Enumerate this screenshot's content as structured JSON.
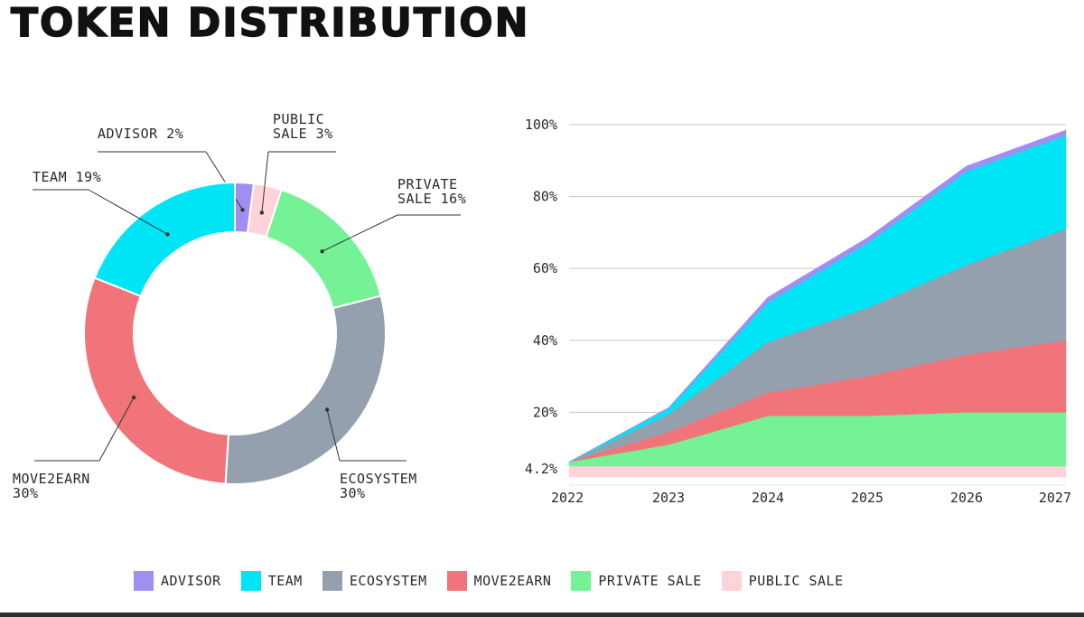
{
  "title": "TOKEN DISTRIBUTION",
  "colors": {
    "advisor": "#a08ff0",
    "team": "#00e5f5",
    "ecosystem": "#94a0ae",
    "move2earn": "#f07479",
    "private_sale": "#75f296",
    "public_sale": "#ffd3d8"
  },
  "chart_data": [
    {
      "type": "pie",
      "subtype": "donut",
      "slices": [
        {
          "key": "advisor",
          "line1": "ADVISOR 2%",
          "line2": "",
          "value": 2
        },
        {
          "key": "public_sale",
          "line1": "PUBLIC",
          "line2": "SALE 3%",
          "value": 3
        },
        {
          "key": "private_sale",
          "line1": "PRIVATE",
          "line2": "SALE 16%",
          "value": 16
        },
        {
          "key": "ecosystem",
          "line1": "ECOSYSTEM",
          "line2": "30%",
          "value": 30
        },
        {
          "key": "move2earn",
          "line1": "MOVE2EARN",
          "line2": "30%",
          "value": 30
        },
        {
          "key": "team",
          "line1": "TEAM 19%",
          "line2": "",
          "value": 19
        }
      ]
    },
    {
      "type": "area",
      "stacked": true,
      "x": [
        2022,
        2023,
        2024,
        2025,
        2026,
        2027
      ],
      "x_tick_labels": [
        "2022",
        "2023",
        "2024",
        "2025",
        "2026",
        "2027"
      ],
      "y_tick_labels": [
        "4.2%",
        "20%",
        "40%",
        "60%",
        "80%",
        "100%"
      ],
      "y_ticks": [
        4.2,
        20,
        40,
        60,
        80,
        100
      ],
      "ylim": [
        2,
        100
      ],
      "series": [
        {
          "key": "public_sale",
          "name": "PUBLIC SALE",
          "values": [
            3,
            3,
            3,
            3,
            3,
            3
          ]
        },
        {
          "key": "private_sale",
          "name": "PRIVATE SALE",
          "values": [
            1.2,
            6,
            14,
            14,
            15,
            15
          ]
        },
        {
          "key": "move2earn",
          "name": "MOVE2EARN",
          "values": [
            0,
            3.5,
            6.5,
            11,
            16,
            20
          ]
        },
        {
          "key": "ecosystem",
          "name": "ECOSYSTEM",
          "values": [
            0,
            5,
            14,
            19,
            25,
            31
          ]
        },
        {
          "key": "team",
          "name": "TEAM",
          "values": [
            0,
            1.5,
            11,
            18,
            26,
            26
          ]
        },
        {
          "key": "advisor",
          "name": "ADVISOR",
          "values": [
            0,
            0.3,
            1.5,
            1.5,
            1.5,
            1.5
          ]
        }
      ]
    }
  ],
  "legend": [
    {
      "key": "advisor",
      "label": "ADVISOR"
    },
    {
      "key": "team",
      "label": "TEAM"
    },
    {
      "key": "ecosystem",
      "label": "ECOSYSTEM"
    },
    {
      "key": "move2earn",
      "label": "MOVE2EARN"
    },
    {
      "key": "private_sale",
      "label": "PRIVATE SALE"
    },
    {
      "key": "public_sale",
      "label": "PUBLIC SALE"
    }
  ]
}
